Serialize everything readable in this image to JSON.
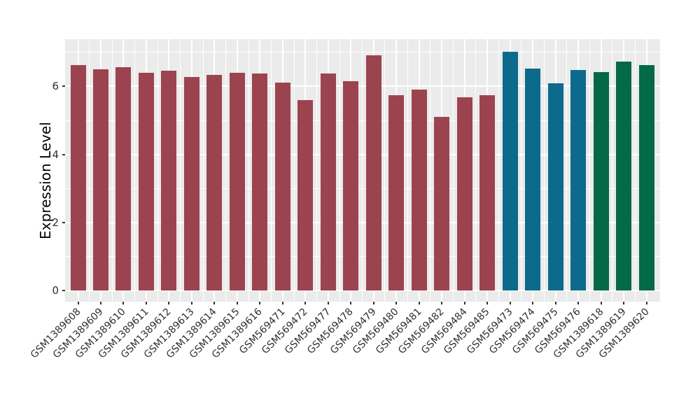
{
  "chart_data": {
    "type": "bar",
    "title": "",
    "xlabel": "",
    "ylabel": "Expression Level",
    "ylim": [
      0,
      7.39
    ],
    "yticks": [
      0,
      2,
      4,
      6
    ],
    "yticks_minor": [
      1,
      3,
      5,
      7
    ],
    "grid": true,
    "legend": "none",
    "panel_bg": "#EBEBEB",
    "gridline_color": "#FFFFFF",
    "tick_color": "#333333",
    "categories": [
      "GSM1389608",
      "GSM1389609",
      "GSM1389610",
      "GSM1389611",
      "GSM1389612",
      "GSM1389613",
      "GSM1389614",
      "GSM1389615",
      "GSM1389616",
      "GSM569471",
      "GSM569472",
      "GSM569477",
      "GSM569478",
      "GSM569479",
      "GSM569480",
      "GSM569481",
      "GSM569482",
      "GSM569484",
      "GSM569485",
      "GSM569473",
      "GSM569474",
      "GSM569475",
      "GSM569476",
      "GSM1389618",
      "GSM1389619",
      "GSM1389620"
    ],
    "values": [
      6.63,
      6.51,
      6.57,
      6.4,
      6.46,
      6.27,
      6.34,
      6.4,
      6.38,
      6.11,
      5.6,
      6.38,
      6.16,
      6.92,
      5.75,
      5.91,
      5.1,
      5.67,
      5.74,
      7.02,
      6.53,
      6.1,
      6.48,
      6.41,
      6.72,
      6.63
    ],
    "colors": {
      "maroon": "#9B4450",
      "teal": "#0C6A8C",
      "green": "#046946"
    },
    "bar_color_keys": [
      "maroon",
      "maroon",
      "maroon",
      "maroon",
      "maroon",
      "maroon",
      "maroon",
      "maroon",
      "maroon",
      "maroon",
      "maroon",
      "maroon",
      "maroon",
      "maroon",
      "maroon",
      "maroon",
      "maroon",
      "maroon",
      "maroon",
      "teal",
      "teal",
      "teal",
      "teal",
      "green",
      "green",
      "green"
    ]
  }
}
